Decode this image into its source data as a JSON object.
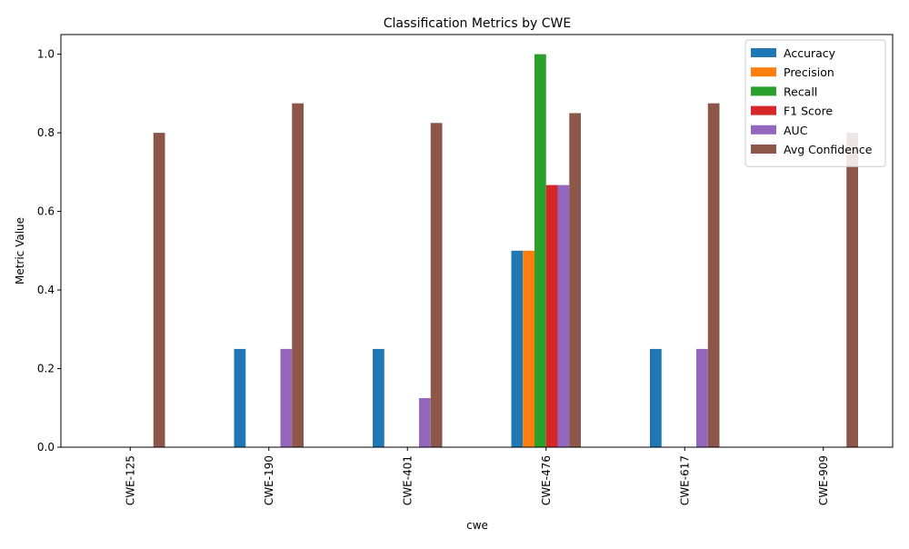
{
  "chart_data": {
    "type": "bar",
    "title": "Classification Metrics by CWE",
    "xlabel": "cwe",
    "ylabel": "Metric Value",
    "ylim": [
      0,
      1.05
    ],
    "yticks": [
      "0.0",
      "0.2",
      "0.4",
      "0.6",
      "0.8",
      "1.0"
    ],
    "ytick_values": [
      0,
      0.2,
      0.4,
      0.6,
      0.8,
      1.0
    ],
    "grid": false,
    "legend_position": "top-right",
    "categories": [
      "CWE-125",
      "CWE-190",
      "CWE-401",
      "CWE-476",
      "CWE-617",
      "CWE-909"
    ],
    "series": [
      {
        "name": "Accuracy",
        "color": "#1f77b4",
        "values": [
          0,
          0.25,
          0.25,
          0.5,
          0.25,
          0
        ]
      },
      {
        "name": "Precision",
        "color": "#ff7f0e",
        "values": [
          0,
          0,
          0,
          0.5,
          0,
          0
        ]
      },
      {
        "name": "Recall",
        "color": "#2ca02c",
        "values": [
          0,
          0,
          0,
          1.0,
          0,
          0
        ]
      },
      {
        "name": "F1 Score",
        "color": "#d62728",
        "values": [
          0,
          0,
          0,
          0.667,
          0,
          0
        ]
      },
      {
        "name": "AUC",
        "color": "#9467bd",
        "values": [
          0,
          0.25,
          0.125,
          0.667,
          0.25,
          0
        ]
      },
      {
        "name": "Avg Confidence",
        "color": "#8c564b",
        "values": [
          0.8,
          0.875,
          0.825,
          0.85,
          0.875,
          0.8
        ]
      }
    ]
  }
}
